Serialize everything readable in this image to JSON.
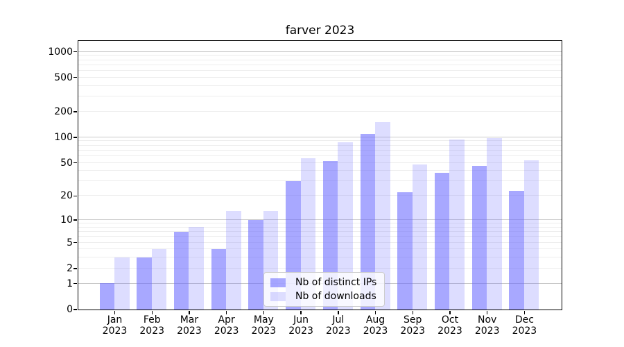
{
  "title": "farver 2023",
  "chart_data": {
    "type": "bar",
    "title": "farver 2023",
    "categories": [
      "Jan 2023",
      "Feb 2023",
      "Mar 2023",
      "Apr 2023",
      "May 2023",
      "Jun 2023",
      "Jul 2023",
      "Aug 2023",
      "Sep 2023",
      "Oct 2023",
      "Nov 2023",
      "Dec 2023"
    ],
    "series": [
      {
        "name": "Nb of distinct IPs",
        "color": "rgba(102,102,255,0.57)",
        "values": [
          1,
          3,
          7,
          4,
          10,
          30,
          52,
          109,
          22,
          38,
          46,
          23
        ]
      },
      {
        "name": "Nb of downloads",
        "color": "rgba(102,102,255,0.22)",
        "values": [
          3,
          4,
          8,
          13,
          13,
          56,
          86,
          148,
          47,
          93,
          97,
          53
        ]
      }
    ],
    "xlabel": "",
    "ylabel": "",
    "yscale": "log10(1+x)",
    "ylim": [
      0,
      1336
    ],
    "y_tick_labels": [
      0,
      1,
      2,
      5,
      10,
      20,
      50,
      100,
      200,
      500,
      1000
    ],
    "y_major_gridlines": [
      1,
      10,
      100,
      1000
    ],
    "grid": true,
    "legend_position": "inside lower-center"
  },
  "colors": {
    "major_grid": "#c9c9c9",
    "minor_grid": "#ededed",
    "spine": "#000000"
  }
}
